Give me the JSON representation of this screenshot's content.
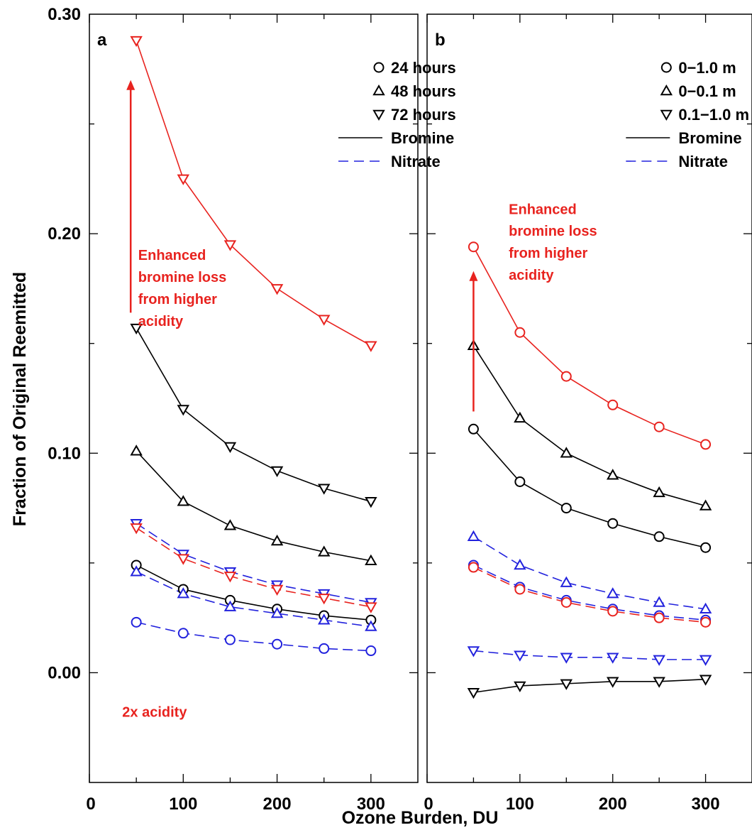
{
  "figure": {
    "xlabel": "Ozone Burden, DU",
    "ylabel": "Fraction of Original Reemitted"
  },
  "colors": {
    "black": "#000000",
    "blue": "#2222dd",
    "red": "#e8231f"
  },
  "chart_data": [
    {
      "panel": "a",
      "type": "line",
      "xlim": [
        0,
        350
      ],
      "ylim": [
        -0.05,
        0.3
      ],
      "xticks": [
        0,
        100,
        200,
        300
      ],
      "yticks": [
        0.0,
        0.1,
        0.2,
        0.3
      ],
      "ytick_labels": [
        "0.00",
        "0.10",
        "0.20",
        "0.30"
      ],
      "legend_position": "top-right",
      "legend": [
        {
          "marker": "circle",
          "label": "24 hours"
        },
        {
          "marker": "triangle-up",
          "label": "48 hours"
        },
        {
          "marker": "triangle-down",
          "label": "72 hours"
        },
        {
          "line": "solid",
          "label": "Bromine"
        },
        {
          "line": "dashed",
          "label": "Nitrate"
        }
      ],
      "annotations": [
        {
          "text": "Enhanced",
          "x": 52,
          "y": 0.188,
          "color": "red"
        },
        {
          "text": "bromine loss",
          "x": 52,
          "y": 0.178,
          "color": "red"
        },
        {
          "text": "from higher",
          "x": 52,
          "y": 0.168,
          "color": "red"
        },
        {
          "text": "acidity",
          "x": 52,
          "y": 0.158,
          "color": "red"
        },
        {
          "text": "2x acidity",
          "x": 35,
          "y": -0.02,
          "color": "red"
        }
      ],
      "arrow": {
        "x": 44,
        "y_from": 0.164,
        "y_to": 0.27,
        "color": "red"
      },
      "x": [
        50,
        100,
        150,
        200,
        250,
        300
      ],
      "series": [
        {
          "marker": "triangle-down",
          "line": "solid",
          "color": "red",
          "values": [
            0.288,
            0.225,
            0.195,
            0.175,
            0.161,
            0.149
          ]
        },
        {
          "marker": "triangle-down",
          "line": "solid",
          "color": "black",
          "values": [
            0.157,
            0.12,
            0.103,
            0.092,
            0.084,
            0.078
          ]
        },
        {
          "marker": "triangle-up",
          "line": "solid",
          "color": "black",
          "values": [
            0.101,
            0.078,
            0.067,
            0.06,
            0.055,
            0.051
          ]
        },
        {
          "marker": "circle",
          "line": "solid",
          "color": "black",
          "values": [
            0.049,
            0.038,
            0.033,
            0.029,
            0.026,
            0.024
          ]
        },
        {
          "marker": "triangle-down",
          "line": "dashed",
          "color": "blue",
          "values": [
            0.068,
            0.054,
            0.046,
            0.04,
            0.036,
            0.032
          ]
        },
        {
          "marker": "triangle-down",
          "line": "dashed",
          "color": "red",
          "values": [
            0.066,
            0.052,
            0.044,
            0.038,
            0.034,
            0.03
          ]
        },
        {
          "marker": "triangle-up",
          "line": "dashed",
          "color": "blue",
          "values": [
            0.046,
            0.036,
            0.03,
            0.027,
            0.024,
            0.021
          ]
        },
        {
          "marker": "circle",
          "line": "dashed",
          "color": "blue",
          "values": [
            0.023,
            0.018,
            0.015,
            0.013,
            0.011,
            0.01
          ]
        }
      ]
    },
    {
      "panel": "b",
      "type": "line",
      "xlim": [
        0,
        350
      ],
      "ylim": [
        -0.05,
        0.3
      ],
      "xticks": [
        0,
        100,
        200,
        300
      ],
      "legend_position": "top-right",
      "legend": [
        {
          "marker": "circle",
          "label": "0−1.0 m"
        },
        {
          "marker": "triangle-up",
          "label": "0−0.1 m"
        },
        {
          "marker": "triangle-down",
          "label": "0.1−1.0 m"
        },
        {
          "line": "solid",
          "label": "Bromine"
        },
        {
          "line": "dashed",
          "label": "Nitrate"
        }
      ],
      "annotations": [
        {
          "text": "Enhanced",
          "x": 88,
          "y": 0.209,
          "color": "red"
        },
        {
          "text": "bromine loss",
          "x": 88,
          "y": 0.199,
          "color": "red"
        },
        {
          "text": "from higher",
          "x": 88,
          "y": 0.189,
          "color": "red"
        },
        {
          "text": "acidity",
          "x": 88,
          "y": 0.179,
          "color": "red"
        }
      ],
      "arrow": {
        "x": 50,
        "y_from": 0.119,
        "y_to": 0.183,
        "color": "red"
      },
      "x": [
        50,
        100,
        150,
        200,
        250,
        300
      ],
      "series": [
        {
          "marker": "circle",
          "line": "solid",
          "color": "red",
          "values": [
            0.194,
            0.155,
            0.135,
            0.122,
            0.112,
            0.104
          ]
        },
        {
          "marker": "triangle-up",
          "line": "solid",
          "color": "black",
          "values": [
            0.149,
            0.116,
            0.1,
            0.09,
            0.082,
            0.076
          ]
        },
        {
          "marker": "circle",
          "line": "solid",
          "color": "black",
          "values": [
            0.111,
            0.087,
            0.075,
            0.068,
            0.062,
            0.057
          ]
        },
        {
          "marker": "triangle-down",
          "line": "solid",
          "color": "black",
          "values": [
            -0.009,
            -0.006,
            -0.005,
            -0.004,
            -0.004,
            -0.003
          ]
        },
        {
          "marker": "triangle-up",
          "line": "dashed",
          "color": "blue",
          "values": [
            0.062,
            0.049,
            0.041,
            0.036,
            0.032,
            0.029
          ]
        },
        {
          "marker": "circle",
          "line": "dashed",
          "color": "blue",
          "values": [
            0.049,
            0.039,
            0.033,
            0.029,
            0.026,
            0.024
          ]
        },
        {
          "marker": "circle",
          "line": "dashed",
          "color": "red",
          "values": [
            0.048,
            0.038,
            0.032,
            0.028,
            0.025,
            0.023
          ]
        },
        {
          "marker": "triangle-down",
          "line": "dashed",
          "color": "blue",
          "values": [
            0.01,
            0.008,
            0.007,
            0.007,
            0.006,
            0.006
          ]
        }
      ]
    }
  ]
}
